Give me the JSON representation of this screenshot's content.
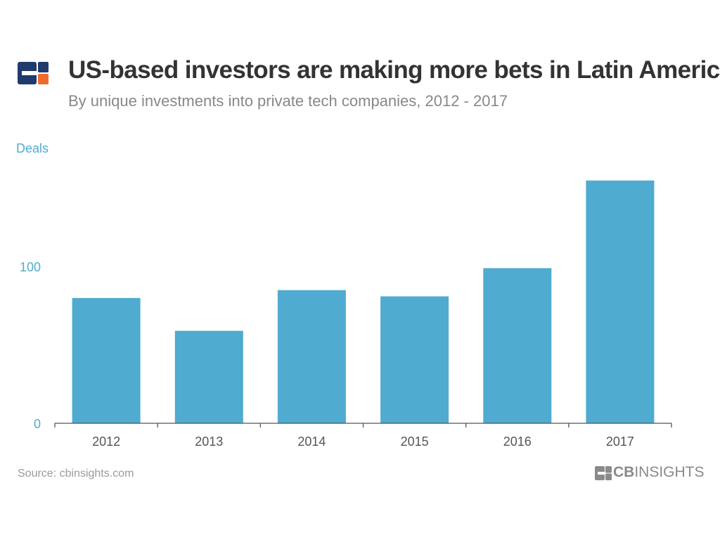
{
  "header": {
    "title": "US-based investors are making more bets in Latin America",
    "subtitle": "By unique investments into private tech companies, 2012 - 2017"
  },
  "footer": {
    "source": "Source: cbinsights.com",
    "brand_bold": "CB",
    "brand_regular": "INSIGHTS"
  },
  "colors": {
    "bar": "#4fabcf",
    "axis_label": "#4fabcf",
    "logo_navy": "#1f3a6b",
    "logo_orange": "#f06a2b",
    "brand_gray": "#8a8a8a"
  },
  "chart_data": {
    "type": "bar",
    "title": "US-based investors are making more bets in Latin America",
    "ylabel": "Deals",
    "xlabel": "",
    "categories": [
      "2012",
      "2013",
      "2014",
      "2015",
      "2016",
      "2017"
    ],
    "values": [
      80,
      59,
      85,
      81,
      99,
      155
    ],
    "ylim": [
      0,
      170
    ],
    "yticks": [
      0,
      100
    ],
    "ytick_labels": [
      "0",
      "100"
    ],
    "grid": false,
    "legend": "none"
  }
}
